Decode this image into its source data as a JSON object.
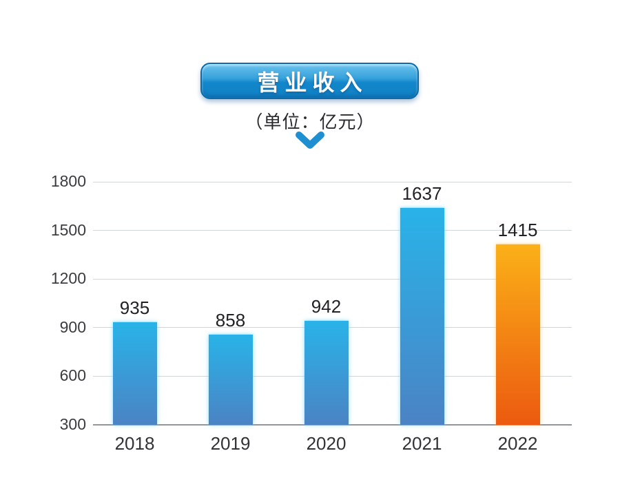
{
  "header": {
    "title": "营业收入",
    "subtitle": "（单位：亿元）",
    "badge_colors": {
      "top": "#6cc3ec",
      "bottom": "#1080c4",
      "border": "#0b6cab",
      "text": "#ffffff"
    },
    "arrow_color": "#1e8fd0"
  },
  "chart_data": {
    "type": "bar",
    "title": "营业收入",
    "unit_label": "（单位：亿元）",
    "categories": [
      "2018",
      "2019",
      "2020",
      "2021",
      "2022"
    ],
    "values": [
      935,
      858,
      942,
      1637,
      1415
    ],
    "value_labels": [
      "935",
      "858",
      "942",
      "1637",
      "1415"
    ],
    "ylim": [
      300,
      1800
    ],
    "yticks": [
      1800,
      1500,
      1200,
      900,
      600,
      300
    ],
    "grid": true,
    "legend": "none",
    "xlabel": "",
    "ylabel": "",
    "highlight_index": 4,
    "bar_colors": {
      "default_top": "#29b3e8",
      "default_bottom": "#4b83c4",
      "highlight_top": "#fbb018",
      "highlight_bottom": "#ec5a10"
    },
    "grid_color": "#d3d6d9",
    "baseline_color": "#8f959b"
  }
}
